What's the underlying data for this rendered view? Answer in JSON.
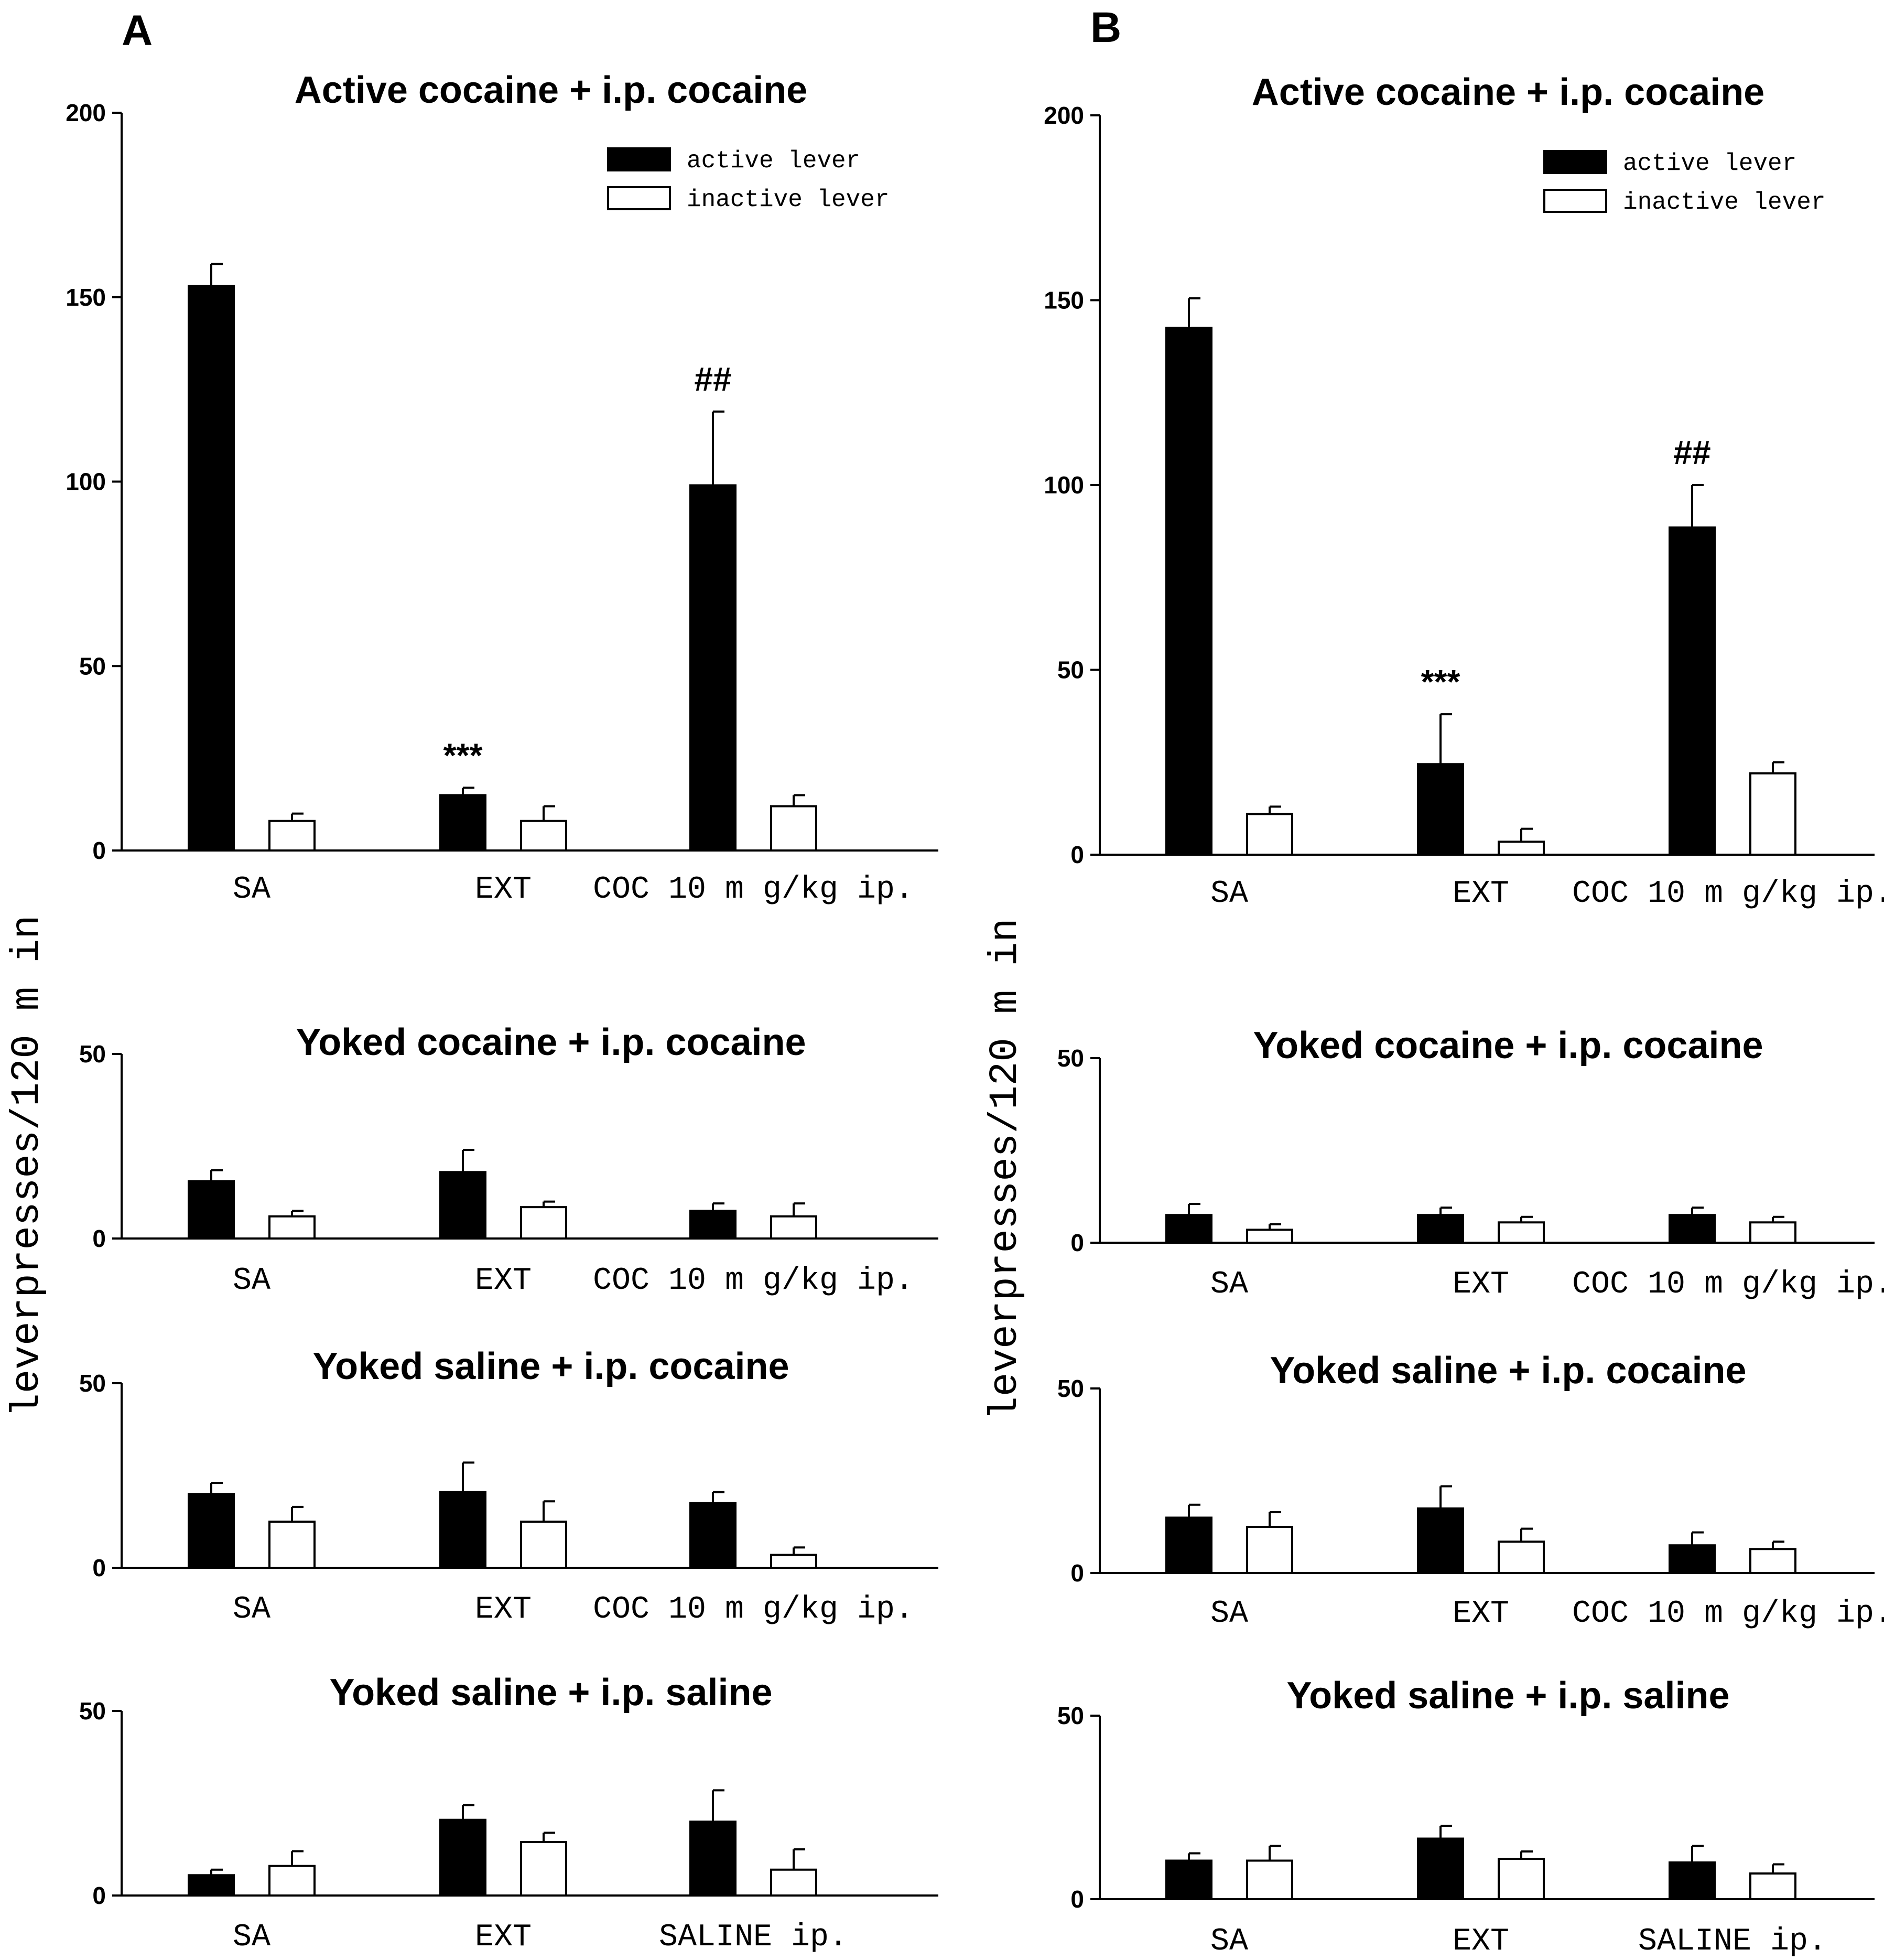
{
  "figure": {
    "panels": [
      "A",
      "B"
    ],
    "ylabel": "leverpresses/120 m in",
    "colors": {
      "active": "#000000",
      "inactive": "#ffffff",
      "axis": "#000000"
    }
  },
  "chart_data": [
    {
      "id": "A1",
      "panel": "A",
      "type": "bar",
      "title": "Active cocaine + i.p. cocaine",
      "categories": [
        "SA",
        "EXT",
        "COC 10 m g/kg ip."
      ],
      "series": [
        {
          "name": "active lever",
          "values": [
            153,
            15,
            99
          ],
          "errors": [
            6,
            2,
            20
          ]
        },
        {
          "name": "inactive lever",
          "values": [
            8,
            8,
            12
          ],
          "errors": [
            2,
            4,
            3
          ]
        }
      ],
      "ylim": [
        0,
        200
      ],
      "yticks": [
        0,
        50,
        100,
        150,
        200
      ],
      "annotations": [
        {
          "text": "***",
          "category": 1,
          "series": 0
        },
        {
          "text": "##",
          "category": 2,
          "series": 0
        }
      ],
      "legend": {
        "position": "top-right",
        "entries": [
          "active lever",
          "inactive lever"
        ]
      }
    },
    {
      "id": "A2",
      "panel": "A",
      "type": "bar",
      "title": "Yoked cocaine + i.p. cocaine",
      "categories": [
        "SA",
        "EXT",
        "COC 10 m g/kg ip."
      ],
      "series": [
        {
          "name": "active lever",
          "values": [
            15.5,
            18,
            7.5
          ],
          "errors": [
            3,
            6,
            2
          ]
        },
        {
          "name": "inactive lever",
          "values": [
            6,
            8.5,
            6
          ],
          "errors": [
            1.5,
            1.5,
            3.5
          ]
        }
      ],
      "ylim": [
        0,
        50
      ],
      "yticks": [
        0,
        50
      ]
    },
    {
      "id": "A3",
      "panel": "A",
      "type": "bar",
      "title": "Yoked saline + i.p. cocaine",
      "categories": [
        "SA",
        "EXT",
        "COC 10 m g/kg ip."
      ],
      "series": [
        {
          "name": "active lever",
          "values": [
            20,
            20.5,
            17.5
          ],
          "errors": [
            3,
            8,
            3
          ]
        },
        {
          "name": "inactive lever",
          "values": [
            12.5,
            12.5,
            3.5
          ],
          "errors": [
            4,
            5.5,
            2
          ]
        }
      ],
      "ylim": [
        0,
        50
      ],
      "yticks": [
        0,
        50
      ]
    },
    {
      "id": "A4",
      "panel": "A",
      "type": "bar",
      "title": "Yoked saline + i.p. saline",
      "categories": [
        "SA",
        "EXT",
        "SALINE ip."
      ],
      "series": [
        {
          "name": "active lever",
          "values": [
            5.5,
            20.5,
            20
          ],
          "errors": [
            1.5,
            4,
            8.5
          ]
        },
        {
          "name": "inactive lever",
          "values": [
            8,
            14.5,
            7
          ],
          "errors": [
            4,
            2.5,
            5.5
          ]
        }
      ],
      "ylim": [
        0,
        50
      ],
      "yticks": [
        0,
        50
      ]
    },
    {
      "id": "B1",
      "panel": "B",
      "type": "bar",
      "title": "Active cocaine + i.p. cocaine",
      "categories": [
        "SA",
        "EXT",
        "COC 10 m g/kg ip."
      ],
      "series": [
        {
          "name": "active lever",
          "values": [
            142.5,
            24.5,
            88.5
          ],
          "errors": [
            8,
            13.5,
            11.5
          ]
        },
        {
          "name": "inactive lever",
          "values": [
            11,
            3.5,
            22
          ],
          "errors": [
            2,
            3.5,
            3
          ]
        }
      ],
      "ylim": [
        0,
        200
      ],
      "yticks": [
        0,
        50,
        100,
        150,
        200
      ],
      "annotations": [
        {
          "text": "***",
          "category": 1,
          "series": 0
        },
        {
          "text": "##",
          "category": 2,
          "series": 0
        }
      ],
      "legend": {
        "position": "top-right",
        "entries": [
          "active lever",
          "inactive lever"
        ]
      }
    },
    {
      "id": "B2",
      "panel": "B",
      "type": "bar",
      "title": "Yoked cocaine + i.p. cocaine",
      "categories": [
        "SA",
        "EXT",
        "COC 10 m g/kg ip."
      ],
      "series": [
        {
          "name": "active lever",
          "values": [
            7.5,
            7.5,
            7.5
          ],
          "errors": [
            3,
            2,
            2
          ]
        },
        {
          "name": "inactive lever",
          "values": [
            3.5,
            5.5,
            5.5
          ],
          "errors": [
            1.5,
            1.5,
            1.5
          ]
        }
      ],
      "ylim": [
        0,
        50
      ],
      "yticks": [
        0,
        50
      ]
    },
    {
      "id": "B3",
      "panel": "B",
      "type": "bar",
      "title": "Yoked saline + i.p. cocaine",
      "categories": [
        "SA",
        "EXT",
        "COC 10 m g/kg ip."
      ],
      "series": [
        {
          "name": "active lever",
          "values": [
            15,
            17.5,
            7.5
          ],
          "errors": [
            3.5,
            6,
            3.5
          ]
        },
        {
          "name": "inactive lever",
          "values": [
            12.5,
            8.5,
            6.5
          ],
          "errors": [
            4,
            3.5,
            2
          ]
        }
      ],
      "ylim": [
        0,
        50
      ],
      "yticks": [
        0,
        50
      ]
    },
    {
      "id": "B4",
      "panel": "B",
      "type": "bar",
      "title": "Yoked saline + i.p. saline",
      "categories": [
        "SA",
        "EXT",
        "SALINE ip."
      ],
      "series": [
        {
          "name": "active lever",
          "values": [
            10.5,
            16.5,
            10
          ],
          "errors": [
            2,
            3.5,
            4.5
          ]
        },
        {
          "name": "inactive lever",
          "values": [
            10.5,
            11,
            7
          ],
          "errors": [
            4,
            2,
            2.5
          ]
        }
      ],
      "ylim": [
        0,
        50
      ],
      "yticks": [
        0,
        50
      ]
    }
  ]
}
